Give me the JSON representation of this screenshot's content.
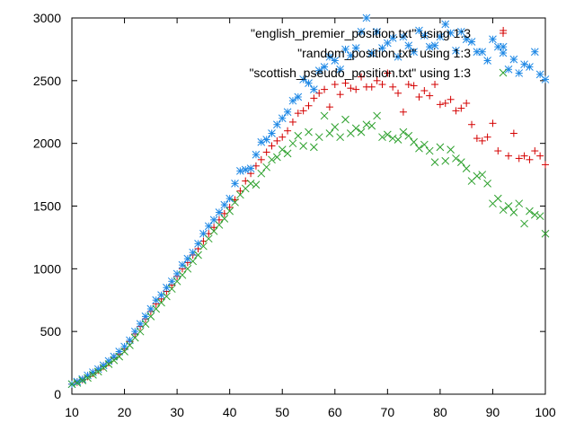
{
  "chart_data": {
    "type": "scatter",
    "title": "",
    "xlabel": "",
    "ylabel": "",
    "xlim": [
      10,
      100
    ],
    "ylim": [
      0,
      3000
    ],
    "xticks": [
      10,
      20,
      30,
      40,
      50,
      60,
      70,
      80,
      90,
      100
    ],
    "yticks": [
      0,
      500,
      1000,
      1500,
      2000,
      2500,
      3000
    ],
    "grid": false,
    "legend_position": "top-right",
    "series": [
      {
        "name": "\"english_premier_position.txt\" using 1:3",
        "marker": "plus",
        "color": "#d40000",
        "x": [
          10,
          11,
          12,
          13,
          14,
          15,
          16,
          17,
          18,
          19,
          20,
          21,
          22,
          23,
          24,
          25,
          26,
          27,
          28,
          29,
          30,
          31,
          32,
          33,
          34,
          35,
          36,
          37,
          38,
          39,
          40,
          41,
          42,
          43,
          44,
          45,
          46,
          47,
          48,
          49,
          50,
          51,
          52,
          53,
          54,
          55,
          56,
          57,
          58,
          59,
          60,
          61,
          62,
          63,
          64,
          65,
          66,
          67,
          68,
          69,
          70,
          71,
          72,
          73,
          74,
          75,
          76,
          77,
          78,
          79,
          80,
          81,
          82,
          83,
          84,
          85,
          86,
          87,
          88,
          89,
          90,
          91,
          92,
          93,
          94,
          95,
          96,
          97,
          98,
          99,
          100
        ],
        "y": [
          80,
          95,
          115,
          140,
          165,
          190,
          220,
          250,
          290,
          320,
          360,
          420,
          480,
          540,
          600,
          660,
          720,
          760,
          820,
          870,
          940,
          1000,
          1050,
          1110,
          1160,
          1220,
          1280,
          1330,
          1390,
          1440,
          1490,
          1550,
          1620,
          1700,
          1760,
          1820,
          1870,
          1930,
          1980,
          2020,
          2050,
          2100,
          2170,
          2240,
          2260,
          2300,
          2360,
          2400,
          2430,
          2290,
          2470,
          2390,
          2480,
          2440,
          2430,
          2530,
          2450,
          2450,
          2500,
          2470,
          2560,
          2450,
          2400,
          2250,
          2470,
          2460,
          2370,
          2420,
          2380,
          2470,
          2310,
          2320,
          2350,
          2260,
          2280,
          2320,
          2150,
          2040,
          2020,
          2050,
          2160,
          1940,
          2900,
          1900,
          2080,
          1880,
          1900,
          1870,
          1940,
          1900,
          1830
        ]
      },
      {
        "name": "\"random_position.txt\" using 1:3",
        "marker": "star",
        "color": "#1e88e5",
        "x": [
          10,
          11,
          12,
          13,
          14,
          15,
          16,
          17,
          18,
          19,
          20,
          21,
          22,
          23,
          24,
          25,
          26,
          27,
          28,
          29,
          30,
          31,
          32,
          33,
          34,
          35,
          36,
          37,
          38,
          39,
          40,
          41,
          42,
          43,
          44,
          45,
          46,
          47,
          48,
          49,
          50,
          51,
          52,
          53,
          54,
          55,
          56,
          57,
          58,
          59,
          60,
          61,
          62,
          63,
          64,
          65,
          66,
          67,
          68,
          69,
          70,
          71,
          72,
          73,
          74,
          75,
          76,
          77,
          78,
          79,
          80,
          81,
          82,
          83,
          84,
          85,
          86,
          87,
          88,
          89,
          90,
          91,
          92,
          93,
          94,
          95,
          96,
          97,
          98,
          99,
          100
        ],
        "y": [
          80,
          100,
          120,
          150,
          175,
          200,
          230,
          265,
          300,
          340,
          380,
          430,
          500,
          560,
          620,
          680,
          750,
          790,
          850,
          900,
          960,
          1030,
          1080,
          1130,
          1200,
          1280,
          1340,
          1390,
          1450,
          1510,
          1560,
          1680,
          1780,
          1790,
          1800,
          1910,
          2010,
          2030,
          2080,
          2150,
          2200,
          2250,
          2340,
          2370,
          2510,
          2480,
          2430,
          2580,
          2610,
          2690,
          2660,
          2590,
          2750,
          2700,
          2760,
          2890,
          3000,
          2720,
          2890,
          2760,
          2800,
          2840,
          2690,
          2850,
          2780,
          2730,
          2900,
          2860,
          2770,
          2780,
          2850,
          2950,
          2880,
          2740,
          2890,
          2830,
          2810,
          2730,
          2730,
          2660,
          2830,
          2770,
          2770,
          2590,
          2670,
          2560,
          2630,
          2610,
          2730,
          2550,
          2510
        ]
      },
      {
        "name": "\"scottish_pseudo_position.txt\" using 1:3",
        "marker": "cross",
        "color": "#2ca02c",
        "x": [
          10,
          11,
          12,
          13,
          14,
          15,
          16,
          17,
          18,
          19,
          20,
          21,
          22,
          23,
          24,
          25,
          26,
          27,
          28,
          29,
          30,
          31,
          32,
          33,
          34,
          35,
          36,
          37,
          38,
          39,
          40,
          41,
          42,
          43,
          44,
          45,
          46,
          47,
          48,
          49,
          50,
          51,
          52,
          53,
          54,
          55,
          56,
          57,
          58,
          59,
          60,
          61,
          62,
          63,
          64,
          65,
          66,
          67,
          68,
          69,
          70,
          71,
          72,
          73,
          74,
          75,
          76,
          77,
          78,
          79,
          80,
          81,
          82,
          83,
          84,
          85,
          86,
          87,
          88,
          89,
          90,
          91,
          92,
          93,
          94,
          95,
          96,
          97,
          98,
          99,
          100
        ],
        "y": [
          80,
          90,
          110,
          130,
          155,
          180,
          210,
          240,
          270,
          300,
          340,
          390,
          450,
          500,
          560,
          620,
          680,
          730,
          780,
          840,
          900,
          950,
          1000,
          1060,
          1110,
          1180,
          1240,
          1300,
          1350,
          1400,
          1460,
          1530,
          1590,
          1640,
          1680,
          1670,
          1760,
          1810,
          1870,
          1890,
          1950,
          1920,
          2000,
          2060,
          1980,
          2090,
          1970,
          2050,
          2220,
          2080,
          2130,
          2050,
          2190,
          2080,
          2120,
          2090,
          2150,
          2140,
          2220,
          2050,
          2070,
          2040,
          2030,
          2090,
          2060,
          2010,
          1960,
          1990,
          1940,
          1850,
          1970,
          1860,
          1950,
          1880,
          1850,
          1800,
          1700,
          1740,
          1750,
          1680,
          1520,
          1560,
          1470,
          1500,
          1450,
          1520,
          1360,
          1460,
          1430,
          1420,
          1280
        ]
      }
    ]
  }
}
